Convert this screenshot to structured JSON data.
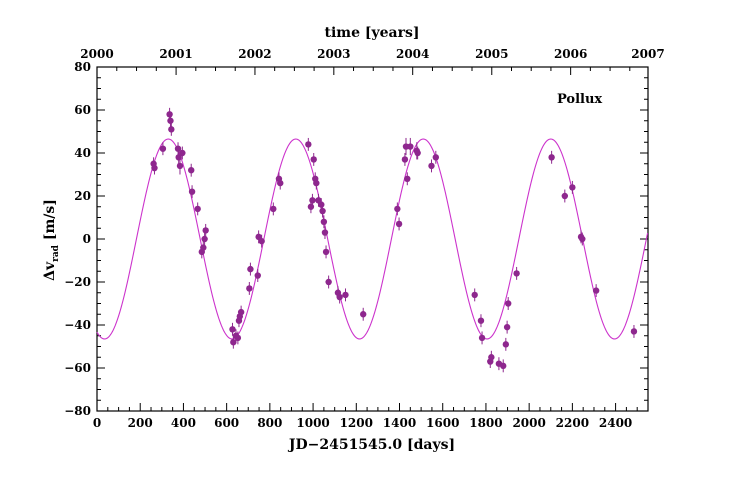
{
  "chart_data": {
    "type": "scatter",
    "annotation": "Pollux",
    "xlabel": "JD−2451545.0 [days]",
    "ylabel_main": "Δv",
    "ylabel_sub": "rad",
    "ylabel_unit": " [m/s]",
    "x2label": "time [years]",
    "xlim": [
      0,
      2550
    ],
    "ylim": [
      -80,
      80
    ],
    "x_ticks": [
      "0",
      "200",
      "400",
      "600",
      "800",
      "1000",
      "1200",
      "1400",
      "1600",
      "1800",
      "2000",
      "2200",
      "2400"
    ],
    "y_ticks": [
      "−80",
      "−60",
      "−40",
      "−20",
      "0",
      "20",
      "40",
      "60",
      "80"
    ],
    "x2_ticks": [
      "2000",
      "2001",
      "2002",
      "2003",
      "2004",
      "2005",
      "2006",
      "2007"
    ],
    "x2_tick_days": [
      0,
      366,
      731,
      1096,
      1461,
      1827,
      2192,
      2557
    ],
    "colors": {
      "data": "#8e278e",
      "fit": "#cc33cc",
      "axis": "#000000"
    },
    "fit": {
      "model": "sinusoid",
      "amplitude": 46.5,
      "period_days": 590,
      "phase_peak_day": 330,
      "offset": 0
    },
    "series": [
      {
        "points": [
          {
            "x": 262,
            "y": 35,
            "err": 3
          },
          {
            "x": 266,
            "y": 33,
            "err": 3
          },
          {
            "x": 305,
            "y": 42,
            "err": 3
          },
          {
            "x": 336,
            "y": 58,
            "err": 3
          },
          {
            "x": 340,
            "y": 55,
            "err": 3
          },
          {
            "x": 344,
            "y": 51,
            "err": 3
          },
          {
            "x": 375,
            "y": 42,
            "err": 3
          },
          {
            "x": 378,
            "y": 38,
            "err": 3
          },
          {
            "x": 384,
            "y": 34,
            "err": 4
          },
          {
            "x": 395,
            "y": 40,
            "err": 3
          },
          {
            "x": 436,
            "y": 32,
            "err": 3
          },
          {
            "x": 440,
            "y": 22,
            "err": 3
          },
          {
            "x": 466,
            "y": 14,
            "err": 3
          },
          {
            "x": 485,
            "y": -6,
            "err": 3
          },
          {
            "x": 492,
            "y": -4,
            "err": 3
          },
          {
            "x": 498,
            "y": 0,
            "err": 3
          },
          {
            "x": 503,
            "y": 4,
            "err": 3
          },
          {
            "x": 627,
            "y": -42,
            "err": 3
          },
          {
            "x": 631,
            "y": -48,
            "err": 3
          },
          {
            "x": 643,
            "y": -45,
            "err": 3
          },
          {
            "x": 652,
            "y": -46,
            "err": 3
          },
          {
            "x": 657,
            "y": -38,
            "err": 3
          },
          {
            "x": 661,
            "y": -36,
            "err": 3
          },
          {
            "x": 667,
            "y": -34,
            "err": 3
          },
          {
            "x": 705,
            "y": -23,
            "err": 3
          },
          {
            "x": 710,
            "y": -14,
            "err": 3
          },
          {
            "x": 744,
            "y": -17,
            "err": 3
          },
          {
            "x": 748,
            "y": 1,
            "err": 3
          },
          {
            "x": 762,
            "y": -1,
            "err": 3
          },
          {
            "x": 816,
            "y": 14,
            "err": 3
          },
          {
            "x": 842,
            "y": 28,
            "err": 3
          },
          {
            "x": 848,
            "y": 26,
            "err": 3
          },
          {
            "x": 978,
            "y": 44,
            "err": 3
          },
          {
            "x": 990,
            "y": 15,
            "err": 3
          },
          {
            "x": 997,
            "y": 18,
            "err": 3
          },
          {
            "x": 1003,
            "y": 37,
            "err": 3
          },
          {
            "x": 1010,
            "y": 28,
            "err": 3
          },
          {
            "x": 1015,
            "y": 26,
            "err": 3
          },
          {
            "x": 1025,
            "y": 18,
            "err": 3
          },
          {
            "x": 1038,
            "y": 16,
            "err": 3
          },
          {
            "x": 1044,
            "y": 13,
            "err": 3
          },
          {
            "x": 1050,
            "y": 8,
            "err": 3
          },
          {
            "x": 1055,
            "y": 3,
            "err": 3
          },
          {
            "x": 1060,
            "y": -6,
            "err": 3
          },
          {
            "x": 1072,
            "y": -20,
            "err": 3
          },
          {
            "x": 1115,
            "y": -25,
            "err": 3
          },
          {
            "x": 1123,
            "y": -27,
            "err": 3
          },
          {
            "x": 1150,
            "y": -26,
            "err": 3
          },
          {
            "x": 1232,
            "y": -35,
            "err": 3
          },
          {
            "x": 1390,
            "y": 14,
            "err": 3
          },
          {
            "x": 1398,
            "y": 7,
            "err": 3
          },
          {
            "x": 1425,
            "y": 37,
            "err": 3
          },
          {
            "x": 1430,
            "y": 43,
            "err": 4
          },
          {
            "x": 1436,
            "y": 28,
            "err": 3
          },
          {
            "x": 1450,
            "y": 43,
            "err": 4
          },
          {
            "x": 1480,
            "y": 41,
            "err": 4
          },
          {
            "x": 1484,
            "y": 40,
            "err": 3
          },
          {
            "x": 1548,
            "y": 34,
            "err": 3
          },
          {
            "x": 1568,
            "y": 38,
            "err": 3
          },
          {
            "x": 1748,
            "y": -26,
            "err": 3
          },
          {
            "x": 1777,
            "y": -38,
            "err": 3
          },
          {
            "x": 1782,
            "y": -46,
            "err": 3
          },
          {
            "x": 1820,
            "y": -57,
            "err": 3
          },
          {
            "x": 1825,
            "y": -55,
            "err": 3
          },
          {
            "x": 1860,
            "y": -58,
            "err": 3
          },
          {
            "x": 1880,
            "y": -59,
            "err": 3
          },
          {
            "x": 1892,
            "y": -49,
            "err": 3
          },
          {
            "x": 1898,
            "y": -41,
            "err": 3
          },
          {
            "x": 1903,
            "y": -30,
            "err": 3
          },
          {
            "x": 1942,
            "y": -16,
            "err": 3
          },
          {
            "x": 2104,
            "y": 38,
            "err": 3
          },
          {
            "x": 2165,
            "y": 20,
            "err": 3
          },
          {
            "x": 2200,
            "y": 24,
            "err": 3
          },
          {
            "x": 2240,
            "y": 1,
            "err": 3
          },
          {
            "x": 2246,
            "y": 0,
            "err": 3
          },
          {
            "x": 2310,
            "y": -24,
            "err": 3
          },
          {
            "x": 2485,
            "y": -43,
            "err": 3
          }
        ]
      }
    ]
  }
}
